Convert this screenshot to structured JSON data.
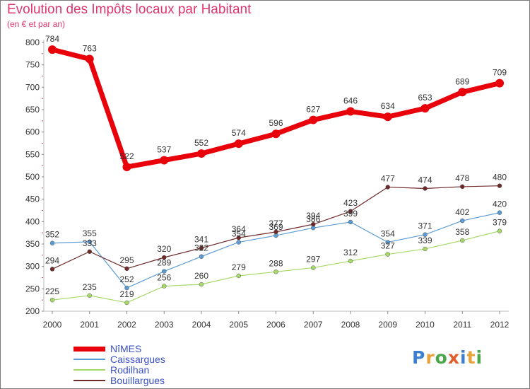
{
  "title": "Evolution des Impôts locaux par Habitant",
  "subtitle": "(en € et par an)",
  "logo": {
    "text": "Proxiti",
    "letter_colors": [
      "#3b7fd0",
      "#e8a23a",
      "#4aa84a",
      "#e25d2c",
      "#3b7fd0",
      "#e8a23a",
      "#4aa84a"
    ]
  },
  "chart_data": {
    "type": "line",
    "x": [
      "2000",
      "2001",
      "2002",
      "2003",
      "2004",
      "2005",
      "2006",
      "2007",
      "2008",
      "2009",
      "2010",
      "2011",
      "2012"
    ],
    "yticks": [
      200,
      250,
      300,
      350,
      400,
      450,
      500,
      550,
      600,
      650,
      700,
      750,
      800
    ],
    "ylim": [
      200,
      800
    ],
    "grid": false,
    "legend_position": "bottom-left",
    "series": [
      {
        "name": "NîMES",
        "color": "#e8000b",
        "width": 7,
        "marker_r": 6,
        "values": [
          784,
          763,
          522,
          537,
          552,
          574,
          596,
          627,
          646,
          634,
          653,
          689,
          709
        ]
      },
      {
        "name": "Caissargues",
        "color": "#5b9bd5",
        "width": 1.2,
        "marker_r": 3,
        "values": [
          352,
          355,
          252,
          289,
          322,
          354,
          369,
          386,
          399,
          354,
          371,
          402,
          420
        ],
        "labels": [
          352,
          355,
          252,
          289,
          322,
          354,
          369,
          386,
          399,
          354,
          371,
          402,
          420
        ]
      },
      {
        "name": "Rodilhan",
        "color": "#a6d96a",
        "width": 1.2,
        "marker_r": 3,
        "values": [
          225,
          235,
          219,
          256,
          260,
          279,
          288,
          297,
          312,
          327,
          339,
          358,
          379
        ],
        "labels": [
          225,
          235,
          219,
          256,
          260,
          279,
          288,
          297,
          312,
          327,
          339,
          358,
          379
        ]
      },
      {
        "name": "Bouillargues",
        "color": "#6e2a2a",
        "width": 1.2,
        "marker_r": 3,
        "values": [
          294,
          333,
          295,
          320,
          341,
          364,
          377,
          394,
          423,
          477,
          474,
          478,
          480
        ],
        "labels": [
          294,
          333,
          295,
          320,
          341,
          364,
          377,
          394,
          423,
          477,
          474,
          478,
          480
        ]
      }
    ]
  }
}
